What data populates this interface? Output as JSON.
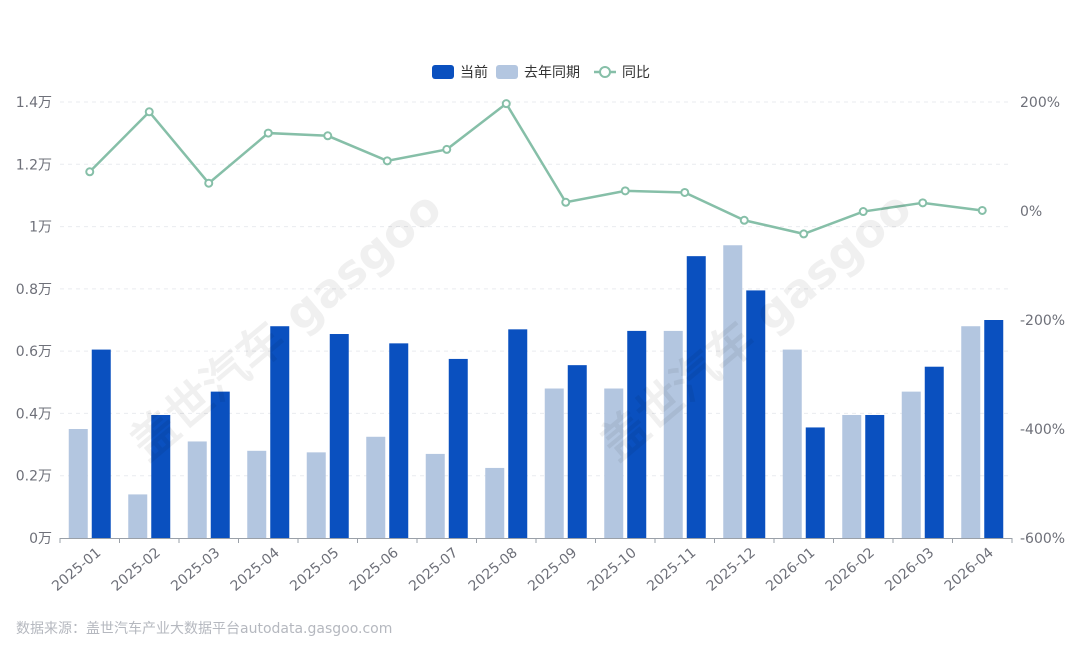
{
  "chart_data": {
    "type": "bar",
    "categories": [
      "2025-01",
      "2025-02",
      "2025-03",
      "2025-04",
      "2025-05",
      "2025-06",
      "2025-07",
      "2025-08",
      "2025-09",
      "2025-10",
      "2025-11",
      "2025-12",
      "2026-01",
      "2026-02",
      "2026-03",
      "2026-04"
    ],
    "series": [
      {
        "name": "当前",
        "type": "bar",
        "axis": "left",
        "color": "#0a50bf",
        "values": [
          6050,
          3950,
          4700,
          6800,
          6550,
          6250,
          5750,
          6700,
          5550,
          6650,
          9050,
          7950,
          3550,
          3950,
          5500,
          7000
        ]
      },
      {
        "name": "去年同期",
        "type": "bar",
        "axis": "left",
        "color": "#b3c6e0",
        "values": [
          3500,
          1400,
          3100,
          2800,
          2750,
          3250,
          2700,
          2250,
          4800,
          4800,
          6650,
          9400,
          6050,
          3950,
          4700,
          6800
        ]
      },
      {
        "name": "同比",
        "type": "line",
        "axis": "right",
        "color": "#86bfa8",
        "values": [
          72,
          182,
          51,
          143,
          138,
          92,
          113,
          197,
          16,
          37,
          34,
          -17,
          -42,
          -1,
          15,
          1
        ]
      }
    ],
    "y_left": {
      "min": 0,
      "max": 14000,
      "ticks": [
        0,
        2000,
        4000,
        6000,
        8000,
        10000,
        12000,
        14000
      ],
      "tick_labels": [
        "0万",
        "0.2万",
        "0.4万",
        "0.6万",
        "0.8万",
        "1万",
        "1.2万",
        "1.4万"
      ]
    },
    "y_right": {
      "min": -600,
      "max": 200,
      "ticks": [
        200,
        0,
        -200,
        -400,
        -600
      ],
      "tick_labels": [
        "200%",
        "0%",
        "-200%",
        "-400%",
        "-600%"
      ]
    },
    "legend_position": "top-center",
    "grid": true
  },
  "source_text": "数据来源：盖世汽车产业大数据平台autodata.gasgoo.com",
  "watermark_text": "盖世汽车 gasgoo"
}
